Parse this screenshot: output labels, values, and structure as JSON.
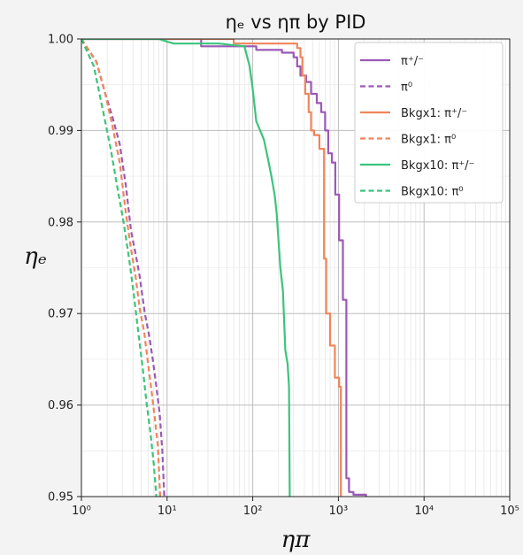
{
  "chart_data": {
    "type": "line",
    "title": "ηₑ vs ηπ by PID",
    "xlabel": "ηπ",
    "ylabel": "ηₑ",
    "xscale": "log",
    "xlim": [
      1,
      100000
    ],
    "ylim": [
      0.95,
      1.0
    ],
    "x_ticks": [
      {
        "value": 1,
        "label": "10⁰"
      },
      {
        "value": 10,
        "label": "10¹"
      },
      {
        "value": 100,
        "label": "10²"
      },
      {
        "value": 1000,
        "label": "10³"
      },
      {
        "value": 10000,
        "label": "10⁴"
      },
      {
        "value": 100000,
        "label": "10⁵"
      }
    ],
    "y_ticks": [
      {
        "value": 0.95,
        "label": "0.95"
      },
      {
        "value": 0.96,
        "label": "0.96"
      },
      {
        "value": 0.97,
        "label": "0.97"
      },
      {
        "value": 0.98,
        "label": "0.98"
      },
      {
        "value": 0.99,
        "label": "0.99"
      },
      {
        "value": 1.0,
        "label": "1.00"
      }
    ],
    "grid": true,
    "legend_position": "top-right",
    "series": [
      {
        "name": "π⁺/⁻",
        "color": "#9b59b6",
        "dash": "solid",
        "step": true,
        "x": [
          1,
          20,
          25,
          80,
          110,
          220,
          300,
          330,
          360,
          420,
          480,
          560,
          630,
          700,
          760,
          840,
          920,
          1020,
          1130,
          1240,
          1330,
          1500,
          2100
        ],
        "y": [
          1.0,
          1.0,
          0.9992,
          0.9992,
          0.9988,
          0.9985,
          0.998,
          0.997,
          0.996,
          0.9953,
          0.994,
          0.993,
          0.992,
          0.99,
          0.9875,
          0.9865,
          0.983,
          0.978,
          0.9715,
          0.952,
          0.9505,
          0.9502,
          0.95
        ]
      },
      {
        "name": "π⁰",
        "color": "#9b59b6",
        "dash": "dashed",
        "step": false,
        "x": [
          1.0,
          1.5,
          1.9,
          2.3,
          2.8,
          3.3,
          3.8,
          4.3,
          4.8,
          5.5,
          6.2,
          6.8,
          7.5,
          8.2,
          8.8,
          9.3
        ],
        "y": [
          1.0,
          0.9975,
          0.994,
          0.9915,
          0.9885,
          0.984,
          0.979,
          0.9765,
          0.974,
          0.97,
          0.9675,
          0.965,
          0.962,
          0.959,
          0.955,
          0.95
        ]
      },
      {
        "name": "Bkgx1: π⁺/⁻",
        "color": "#f0855a",
        "dash": "solid",
        "step": true,
        "x": [
          1,
          15,
          60,
          230,
          330,
          360,
          380,
          410,
          450,
          480,
          520,
          600,
          680,
          720,
          800,
          910,
          1020,
          1070
        ],
        "y": [
          1.0,
          1.0,
          0.9995,
          0.9995,
          0.999,
          0.998,
          0.996,
          0.994,
          0.992,
          0.99,
          0.9895,
          0.988,
          0.976,
          0.97,
          0.9665,
          0.963,
          0.962,
          0.95
        ]
      },
      {
        "name": "Bkgx1: π⁰",
        "color": "#f0855a",
        "dash": "dashed",
        "step": false,
        "x": [
          1.0,
          1.5,
          1.9,
          2.3,
          2.8,
          3.3,
          3.8,
          4.3,
          4.8,
          5.4,
          6.0,
          6.6,
          7.2,
          7.8,
          8.3
        ],
        "y": [
          1.0,
          0.9975,
          0.994,
          0.9905,
          0.9865,
          0.981,
          0.977,
          0.974,
          0.9705,
          0.968,
          0.9645,
          0.9615,
          0.9585,
          0.9555,
          0.95
        ]
      },
      {
        "name": "Bkgx10: π⁺/⁻",
        "color": "#3cc47c",
        "dash": "solid",
        "step": false,
        "x": [
          1,
          8,
          10,
          12,
          40,
          80,
          92,
          100,
          110,
          122,
          135,
          150,
          165,
          180,
          190,
          200,
          210,
          225,
          240,
          255,
          265,
          270
        ],
        "y": [
          1.0,
          1.0,
          0.9997,
          0.9995,
          0.9995,
          0.9992,
          0.997,
          0.9945,
          0.991,
          0.99,
          0.989,
          0.987,
          0.985,
          0.983,
          0.981,
          0.978,
          0.975,
          0.9725,
          0.966,
          0.9645,
          0.962,
          0.95
        ]
      },
      {
        "name": "Bkgx10: π⁰",
        "color": "#3cc47c",
        "dash": "dashed",
        "step": false,
        "x": [
          1.0,
          1.4,
          1.8,
          2.2,
          2.6,
          3.1,
          3.6,
          4.1,
          4.6,
          5.2,
          5.8,
          6.4,
          7.0,
          7.5
        ],
        "y": [
          1.0,
          0.997,
          0.992,
          0.988,
          0.984,
          0.98,
          0.976,
          0.972,
          0.968,
          0.964,
          0.96,
          0.957,
          0.9535,
          0.95
        ]
      }
    ]
  }
}
